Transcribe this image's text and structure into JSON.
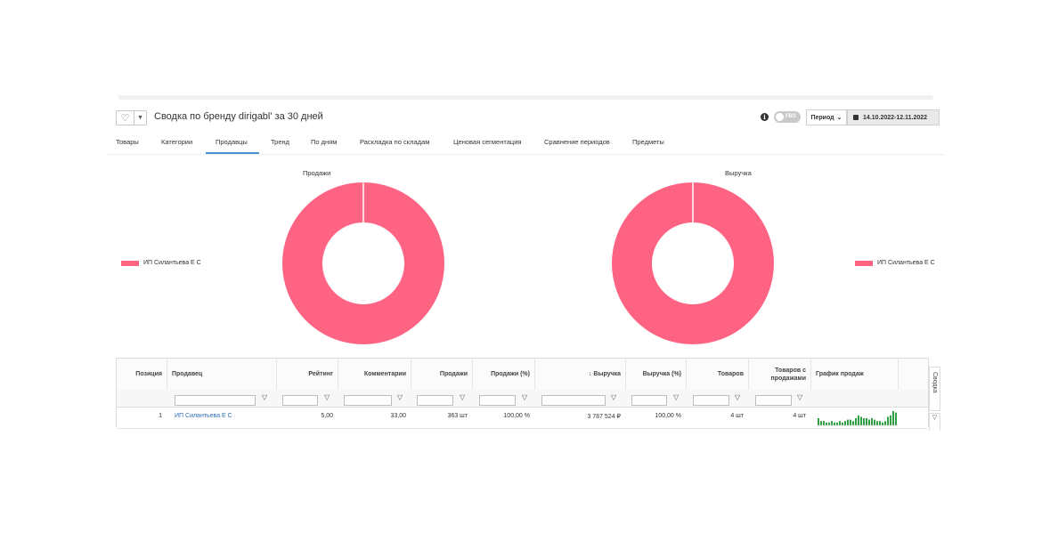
{
  "header": {
    "title": "Сводка по бренду dirigabl' за 30 дней",
    "fbs_label": "FBS",
    "period_label": "Период",
    "date_range": "14.10.2022-12.11.2022"
  },
  "tabs": [
    {
      "label": "Товары"
    },
    {
      "label": "Категории"
    },
    {
      "label": "Продавцы",
      "active": true
    },
    {
      "label": "Тренд"
    },
    {
      "label": "По дням"
    },
    {
      "label": "Раскладка по складам"
    },
    {
      "label": "Ценовая сегментация"
    },
    {
      "label": "Сравнение периодов"
    },
    {
      "label": "Предметы"
    }
  ],
  "charts": [
    {
      "title": "Продажи",
      "legend": "ИП Силантьева Е С",
      "slices": [
        {
          "name": "ИП Силантьева Е С",
          "share": 100
        }
      ],
      "color": "#ff6384"
    },
    {
      "title": "Выручка",
      "legend": "ИП Силантьева Е С",
      "slices": [
        {
          "name": "ИП Силантьева Е С",
          "share": 100
        }
      ],
      "color": "#ff6384"
    }
  ],
  "table": {
    "columns": {
      "position": "Позиция",
      "seller": "Продавец",
      "rating": "Рейтинг",
      "comments": "Комментарии",
      "sales": "Продажи",
      "sales_pct": "Продажи (%)",
      "revenue": "↓ Выручка",
      "revenue_pct": "Выручка (%)",
      "products": "Товаров",
      "products_with_sales": "Товаров с продажами",
      "sales_graph": "График продаж"
    },
    "rows": [
      {
        "position": "1",
        "seller": "ИП Силантьева Е С",
        "rating": "5,00",
        "comments": "33,00",
        "sales": "363 шт",
        "sales_pct": "100,00 %",
        "revenue": "3 787 524 ₽",
        "revenue_pct": "100,00 %",
        "products": "4 шт",
        "products_with_sales": "4 шт",
        "sparkline": [
          5,
          3,
          3,
          2,
          2,
          3,
          2,
          2,
          3,
          2,
          3,
          4,
          4,
          3,
          5,
          7,
          6,
          5,
          5,
          4,
          5,
          4,
          3,
          3,
          2,
          3,
          6,
          7,
          10,
          9
        ]
      }
    ]
  },
  "side_panel": {
    "label": "Сводка"
  },
  "colors": {
    "pie": "#ff6384",
    "spark": "#2ea043",
    "link": "#2e6db4",
    "active_tab": "#4a90d9"
  }
}
